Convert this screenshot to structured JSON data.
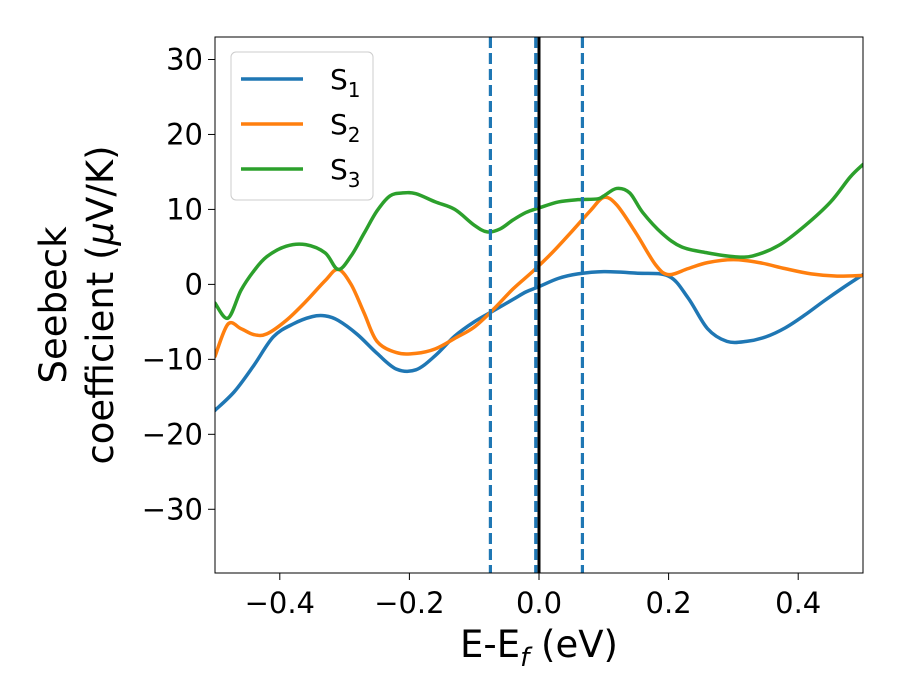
{
  "chart_data": {
    "type": "line",
    "xlabel": {
      "main": "E-E",
      "sub": "f",
      "suffix": " (eV)"
    },
    "ylabel": {
      "line1": "Seebeck",
      "line2_prefix": "coefficient  (",
      "mu": "μ",
      "line2_suffix": "V/K)"
    },
    "xlim": [
      -0.5,
      0.5
    ],
    "ylim": [
      -38.5,
      33
    ],
    "xticks": [
      -0.4,
      -0.2,
      0.0,
      0.2,
      0.4
    ],
    "xtick_labels": [
      "−0.4",
      "−0.2",
      "0.0",
      "0.2",
      "0.4"
    ],
    "yticks": [
      30,
      20,
      10,
      0,
      -10,
      -20,
      -30
    ],
    "ytick_labels": [
      "30",
      "20",
      "10",
      "0",
      "−10",
      "−20",
      "−30"
    ],
    "grid": false,
    "legend_position": "top-left",
    "vertical_lines": [
      {
        "x": -0.075,
        "style": "dashed",
        "color": "#1f77b4"
      },
      {
        "x": -0.005,
        "style": "dashed",
        "color": "#1f77b4"
      },
      {
        "x": 0.067,
        "style": "dashed",
        "color": "#1f77b4"
      },
      {
        "x": 0.0,
        "style": "solid",
        "color": "#000000"
      }
    ],
    "series": [
      {
        "name": "S",
        "sub": "1",
        "color": "#1f77b4",
        "x": [
          -0.5,
          -0.47,
          -0.44,
          -0.41,
          -0.38,
          -0.35,
          -0.33,
          -0.31,
          -0.28,
          -0.25,
          -0.22,
          -0.19,
          -0.16,
          -0.13,
          -0.1,
          -0.07,
          -0.04,
          -0.02,
          0.0,
          0.03,
          0.06,
          0.1,
          0.15,
          0.2,
          0.23,
          0.26,
          0.29,
          0.32,
          0.35,
          0.38,
          0.41,
          0.44,
          0.47,
          0.5
        ],
        "y": [
          -16.8,
          -14.3,
          -10.8,
          -7.0,
          -5.3,
          -4.3,
          -4.2,
          -4.8,
          -6.7,
          -9.2,
          -11.3,
          -11.4,
          -9.5,
          -6.9,
          -5.0,
          -3.5,
          -2.0,
          -1.0,
          -0.3,
          0.8,
          1.4,
          1.7,
          1.5,
          1.1,
          -1.8,
          -5.9,
          -7.6,
          -7.6,
          -7.0,
          -5.8,
          -4.1,
          -2.2,
          -0.4,
          1.3
        ]
      },
      {
        "name": "S",
        "sub": "2",
        "color": "#ff7f0e",
        "x": [
          -0.5,
          -0.48,
          -0.46,
          -0.44,
          -0.42,
          -0.39,
          -0.36,
          -0.33,
          -0.31,
          -0.29,
          -0.27,
          -0.25,
          -0.22,
          -0.19,
          -0.16,
          -0.13,
          -0.1,
          -0.07,
          -0.04,
          -0.01,
          0.02,
          0.05,
          0.08,
          0.1,
          0.12,
          0.15,
          0.18,
          0.2,
          0.23,
          0.26,
          0.3,
          0.34,
          0.38,
          0.42,
          0.46,
          0.5
        ],
        "y": [
          -9.6,
          -5.3,
          -5.9,
          -6.7,
          -6.6,
          -4.8,
          -2.3,
          0.5,
          2.0,
          0.0,
          -3.8,
          -7.6,
          -9.1,
          -9.2,
          -8.6,
          -7.2,
          -5.7,
          -3.3,
          -0.6,
          1.7,
          4.2,
          7.0,
          9.9,
          11.6,
          10.6,
          6.8,
          2.6,
          1.3,
          2.1,
          2.9,
          3.3,
          2.9,
          2.1,
          1.4,
          1.1,
          1.2
        ]
      },
      {
        "name": "S",
        "sub": "3",
        "color": "#2ca02c",
        "x": [
          -0.5,
          -0.48,
          -0.46,
          -0.44,
          -0.42,
          -0.39,
          -0.36,
          -0.33,
          -0.31,
          -0.29,
          -0.27,
          -0.25,
          -0.23,
          -0.21,
          -0.19,
          -0.16,
          -0.13,
          -0.1,
          -0.08,
          -0.06,
          -0.04,
          -0.02,
          0.0,
          0.03,
          0.06,
          0.09,
          0.1,
          0.12,
          0.14,
          0.16,
          0.19,
          0.22,
          0.26,
          0.3,
          0.33,
          0.37,
          0.41,
          0.45,
          0.48,
          0.5
        ],
        "y": [
          -2.5,
          -4.5,
          -0.8,
          1.8,
          3.7,
          5.1,
          5.3,
          4.2,
          2.0,
          3.8,
          6.8,
          9.8,
          11.8,
          12.2,
          12.1,
          11.0,
          10.0,
          7.9,
          7.0,
          7.4,
          8.6,
          9.6,
          10.2,
          11.0,
          11.3,
          11.4,
          11.8,
          12.8,
          12.2,
          9.6,
          6.8,
          5.0,
          4.2,
          3.7,
          3.8,
          5.2,
          7.8,
          11.0,
          14.3,
          16.0
        ]
      }
    ]
  }
}
